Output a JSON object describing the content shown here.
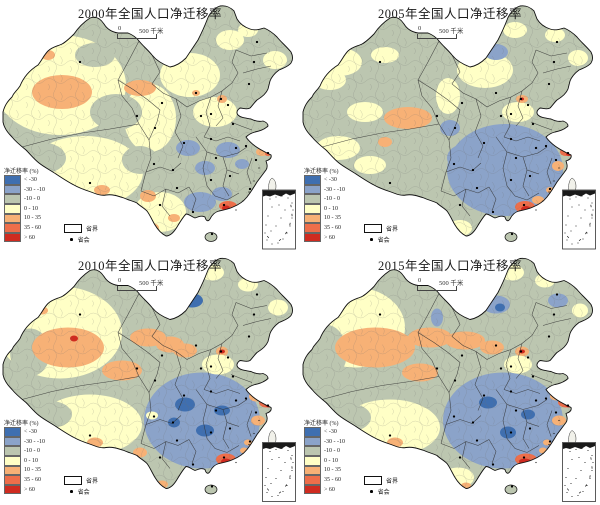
{
  "figure": {
    "name": "china-net-migration-rate-maps"
  },
  "legend": {
    "title": "净迁移率 (%)",
    "classes": [
      {
        "label": "< -30",
        "color": "#3f6fb0"
      },
      {
        "label": "-30 - -10",
        "color": "#8ba3c9"
      },
      {
        "label": "-10 - 0",
        "color": "#bcc6b0"
      },
      {
        "label": "0 - 10",
        "color": "#ffffc6"
      },
      {
        "label": "10 - 35",
        "color": "#f7b176"
      },
      {
        "label": "35 - 60",
        "color": "#ee6e4a"
      },
      {
        "label": "> 60",
        "color": "#cf2b20"
      }
    ],
    "boundary_label": "省界",
    "capital_label": "省会"
  },
  "scalebar": {
    "zero": "0",
    "distance": "500 千米"
  },
  "maps": [
    {
      "year": "2000",
      "title": "2000年全国人口净迁移率",
      "patches": [
        [
          3,
          60,
          85,
          66,
          50
        ],
        [
          3,
          85,
          172,
          58,
          36
        ],
        [
          3,
          150,
          118,
          26,
          34
        ],
        [
          3,
          190,
          75,
          30,
          22
        ],
        [
          3,
          215,
          112,
          22,
          15
        ],
        [
          3,
          160,
          212,
          26,
          20
        ],
        [
          3,
          230,
          40,
          14,
          10
        ],
        [
          3,
          275,
          60,
          12,
          9
        ],
        [
          3,
          248,
          30,
          10,
          7
        ],
        [
          2,
          40,
          158,
          26,
          16
        ],
        [
          2,
          116,
          112,
          26,
          18
        ],
        [
          2,
          95,
          55,
          20,
          12
        ],
        [
          2,
          140,
          160,
          18,
          14
        ],
        [
          4,
          62,
          92,
          30,
          17
        ],
        [
          4,
          48,
          55,
          7,
          5
        ],
        [
          4,
          140,
          88,
          16,
          8
        ],
        [
          4,
          102,
          190,
          8,
          5
        ],
        [
          4,
          148,
          196,
          8,
          6
        ],
        [
          4,
          152,
          228,
          7,
          5
        ],
        [
          4,
          174,
          218,
          6,
          4
        ],
        [
          1,
          188,
          148,
          12,
          8
        ],
        [
          1,
          228,
          150,
          12,
          8
        ],
        [
          1,
          205,
          168,
          10,
          7
        ],
        [
          1,
          200,
          202,
          16,
          10
        ],
        [
          1,
          222,
          194,
          10,
          7
        ],
        [
          1,
          242,
          164,
          7,
          5
        ],
        [
          5,
          228,
          206,
          9,
          5
        ],
        [
          6,
          226,
          208,
          4,
          2.5
        ],
        [
          4,
          262,
          152,
          6,
          4
        ],
        [
          5,
          268,
          154,
          3,
          2
        ],
        [
          4,
          222,
          99,
          5,
          4
        ],
        [
          4,
          196,
          93,
          4,
          3
        ]
      ]
    },
    {
      "year": "2005",
      "title": "2005年全国人口净迁移率",
      "patches": [
        [
          3,
          40,
          62,
          22,
          14
        ],
        [
          3,
          30,
          80,
          16,
          10
        ],
        [
          3,
          85,
          55,
          14,
          8
        ],
        [
          3,
          65,
          112,
          18,
          10
        ],
        [
          3,
          38,
          148,
          22,
          12
        ],
        [
          3,
          70,
          165,
          16,
          9
        ],
        [
          3,
          185,
          70,
          28,
          18
        ],
        [
          3,
          215,
          30,
          12,
          8
        ],
        [
          3,
          255,
          35,
          10,
          7
        ],
        [
          3,
          278,
          58,
          10,
          8
        ],
        [
          3,
          218,
          112,
          16,
          10
        ],
        [
          3,
          160,
          228,
          12,
          8
        ],
        [
          3,
          148,
          96,
          12,
          18
        ],
        [
          4,
          108,
          118,
          24,
          11
        ],
        [
          4,
          85,
          142,
          7,
          5
        ],
        [
          1,
          205,
          170,
          58,
          46
        ],
        [
          1,
          165,
          158,
          18,
          14
        ],
        [
          1,
          150,
          128,
          10,
          8
        ],
        [
          1,
          196,
          52,
          12,
          8
        ],
        [
          5,
          225,
          207,
          10,
          6
        ],
        [
          6,
          226,
          209,
          5,
          3
        ],
        [
          4,
          238,
          200,
          6,
          4
        ],
        [
          5,
          266,
          152,
          6,
          4
        ],
        [
          6,
          269,
          154,
          3,
          2
        ],
        [
          4,
          258,
          166,
          6,
          5
        ],
        [
          4,
          250,
          190,
          4,
          3
        ],
        [
          4,
          222,
          99,
          6,
          4
        ],
        [
          6,
          222,
          99,
          2,
          1.5
        ]
      ]
    },
    {
      "year": "2010",
      "title": "2010年全国人口净迁移率",
      "patches": [
        [
          3,
          60,
          80,
          62,
          46
        ],
        [
          3,
          90,
          172,
          52,
          30
        ],
        [
          2,
          48,
          162,
          24,
          14
        ],
        [
          2,
          30,
          100,
          20,
          24
        ],
        [
          4,
          68,
          95,
          36,
          20
        ],
        [
          6,
          74,
          86,
          4,
          3
        ],
        [
          4,
          42,
          58,
          6,
          4
        ],
        [
          4,
          148,
          85,
          18,
          9
        ],
        [
          4,
          170,
          92,
          14,
          8
        ],
        [
          4,
          185,
          98,
          12,
          7
        ],
        [
          4,
          122,
          118,
          20,
          10
        ],
        [
          4,
          95,
          190,
          8,
          5
        ],
        [
          4,
          140,
          200,
          7,
          5
        ],
        [
          0,
          192,
          48,
          11,
          7
        ],
        [
          4,
          222,
          99,
          6,
          5
        ],
        [
          6,
          222,
          99,
          3,
          2
        ],
        [
          1,
          202,
          168,
          58,
          48
        ],
        [
          0,
          185,
          152,
          10,
          7
        ],
        [
          0,
          205,
          178,
          9,
          6
        ],
        [
          0,
          174,
          170,
          6,
          5
        ],
        [
          0,
          222,
          158,
          8,
          5
        ],
        [
          3,
          152,
          163,
          6,
          4
        ],
        [
          5,
          266,
          150,
          7,
          5
        ],
        [
          6,
          269,
          152,
          4,
          3
        ],
        [
          4,
          256,
          144,
          7,
          5
        ],
        [
          4,
          258,
          168,
          7,
          5
        ],
        [
          5,
          226,
          207,
          10,
          6
        ],
        [
          6,
          226,
          209,
          5,
          3
        ],
        [
          4,
          248,
          190,
          4,
          3
        ],
        [
          4,
          244,
          198,
          4,
          3
        ],
        [
          3,
          212,
          20,
          12,
          8
        ],
        [
          3,
          278,
          55,
          10,
          8
        ],
        [
          3,
          248,
          32,
          10,
          7
        ],
        [
          3,
          218,
          112,
          16,
          10
        ],
        [
          4,
          162,
          232,
          6,
          4
        ]
      ]
    },
    {
      "year": "2015",
      "title": "2015年全国人口净迁移率",
      "patches": [
        [
          3,
          55,
          75,
          50,
          40
        ],
        [
          2,
          25,
          100,
          22,
          28
        ],
        [
          4,
          75,
          95,
          40,
          20
        ],
        [
          4,
          130,
          85,
          22,
          10
        ],
        [
          4,
          165,
          88,
          20,
          9
        ],
        [
          4,
          192,
          95,
          12,
          7
        ],
        [
          3,
          90,
          175,
          50,
          28
        ],
        [
          2,
          45,
          165,
          26,
          15
        ],
        [
          4,
          95,
          190,
          8,
          5
        ],
        [
          4,
          120,
          120,
          18,
          9
        ],
        [
          1,
          137,
          65,
          6,
          9
        ],
        [
          1,
          196,
          52,
          14,
          9
        ],
        [
          0,
          200,
          55,
          5,
          4
        ],
        [
          1,
          258,
          48,
          10,
          7
        ],
        [
          4,
          222,
          99,
          7,
          5
        ],
        [
          6,
          222,
          99,
          3,
          2
        ],
        [
          1,
          203,
          168,
          60,
          48
        ],
        [
          0,
          188,
          150,
          9,
          6
        ],
        [
          0,
          208,
          180,
          8,
          6
        ],
        [
          0,
          228,
          162,
          7,
          5
        ],
        [
          5,
          266,
          150,
          8,
          5
        ],
        [
          6,
          269,
          152,
          4,
          3
        ],
        [
          4,
          257,
          144,
          7,
          4
        ],
        [
          4,
          259,
          168,
          7,
          5
        ],
        [
          5,
          226,
          207,
          11,
          6
        ],
        [
          6,
          225,
          209,
          6,
          3
        ],
        [
          4,
          247,
          190,
          4,
          3
        ],
        [
          4,
          243,
          198,
          4,
          3
        ],
        [
          3,
          212,
          20,
          12,
          8
        ],
        [
          3,
          280,
          58,
          8,
          7
        ],
        [
          3,
          245,
          28,
          10,
          7
        ],
        [
          3,
          218,
          112,
          14,
          9
        ],
        [
          3,
          158,
          225,
          16,
          10
        ],
        [
          4,
          166,
          233,
          5,
          3
        ]
      ]
    }
  ]
}
